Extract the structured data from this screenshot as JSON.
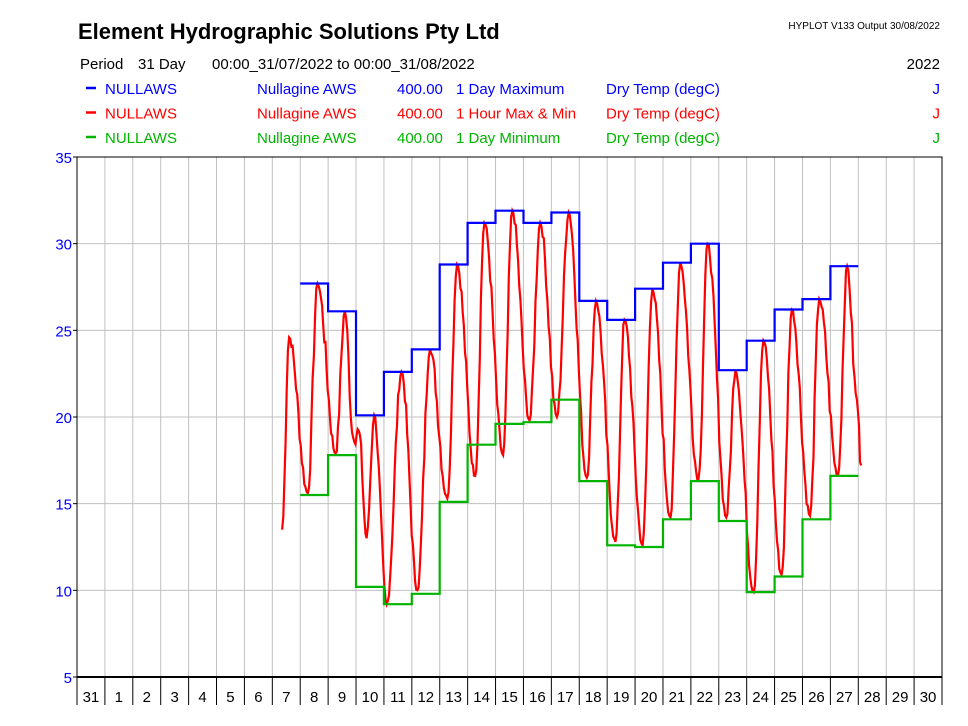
{
  "header": {
    "title": "Element Hydrographic Solutions Pty Ltd",
    "version": "HYPLOT V133  Output 30/08/2022",
    "period_label": "Period",
    "period_value": "31 Day",
    "period_range": "00:00_31/07/2022 to 00:00_31/08/2022",
    "year": "2022"
  },
  "legend": [
    {
      "site": "NULLAWS",
      "name": "Nullagine AWS",
      "var": "400.00",
      "desc": "1 Day Maximum",
      "param": "Dry Temp (degC)",
      "flag": "J",
      "color": "#0000ff"
    },
    {
      "site": "NULLAWS",
      "name": "Nullagine AWS",
      "var": "400.00",
      "desc": "1 Hour Max & Min",
      "param": "Dry Temp (degC)",
      "flag": "J",
      "color": "#ff0000"
    },
    {
      "site": "NULLAWS",
      "name": "Nullagine AWS",
      "var": "400.00",
      "desc": "1 Day Minimum",
      "param": "Dry Temp (degC)",
      "flag": "J",
      "color": "#00b400"
    }
  ],
  "chart_data": {
    "type": "line",
    "title": "Element Hydrographic Solutions Pty Ltd",
    "xlabel": "",
    "ylabel": "Dry Temp (degC)",
    "ylim": [
      5,
      35
    ],
    "yticks": [
      5,
      10,
      15,
      20,
      25,
      30,
      35
    ],
    "xlim_days": [
      0,
      31
    ],
    "x_tick_labels": [
      "31",
      "1",
      "2",
      "3",
      "4",
      "5",
      "6",
      "7",
      "8",
      "9",
      "10",
      "11",
      "12",
      "13",
      "14",
      "15",
      "16",
      "17",
      "18",
      "19",
      "20",
      "21",
      "22",
      "23",
      "24",
      "25",
      "26",
      "27",
      "28",
      "29",
      "30"
    ],
    "grid": true,
    "series": [
      {
        "name": "1 Day Maximum",
        "color": "#0000ff",
        "kind": "daily-step",
        "days": [
          8,
          9,
          10,
          11,
          12,
          13,
          14,
          15,
          16,
          17,
          18,
          19,
          20,
          21,
          22,
          23,
          24,
          25,
          26,
          27
        ],
        "values": [
          27.7,
          26.1,
          20.1,
          22.6,
          23.9,
          28.8,
          31.2,
          31.9,
          31.2,
          31.8,
          26.7,
          25.6,
          27.4,
          28.9,
          30.0,
          22.7,
          24.4,
          26.2,
          26.8,
          28.7
        ]
      },
      {
        "name": "1 Hour Max & Min",
        "color": "#ff0000",
        "kind": "hourly",
        "points": [
          [
            7.35,
            13.5
          ],
          [
            7.6,
            24.6
          ],
          [
            8.27,
            15.6
          ],
          [
            8.62,
            27.7
          ],
          [
            9.27,
            17.9
          ],
          [
            9.6,
            26.1
          ],
          [
            9.9,
            18.8
          ],
          [
            10.1,
            19.2
          ],
          [
            10.38,
            13.0
          ],
          [
            10.65,
            20.1
          ],
          [
            11.1,
            9.2
          ],
          [
            11.63,
            22.6
          ],
          [
            12.2,
            10.0
          ],
          [
            12.65,
            23.9
          ],
          [
            13.27,
            15.3
          ],
          [
            13.62,
            28.8
          ],
          [
            14.27,
            16.6
          ],
          [
            14.6,
            31.2
          ],
          [
            15.27,
            17.8
          ],
          [
            15.6,
            31.9
          ],
          [
            16.22,
            19.8
          ],
          [
            16.6,
            31.2
          ],
          [
            17.2,
            20.0
          ],
          [
            17.62,
            31.8
          ],
          [
            18.27,
            16.5
          ],
          [
            18.6,
            26.7
          ],
          [
            19.3,
            12.8
          ],
          [
            19.62,
            25.6
          ],
          [
            20.27,
            12.6
          ],
          [
            20.62,
            27.4
          ],
          [
            21.27,
            14.2
          ],
          [
            21.62,
            28.9
          ],
          [
            22.27,
            16.4
          ],
          [
            22.6,
            30.0
          ],
          [
            23.27,
            14.2
          ],
          [
            23.6,
            22.7
          ],
          [
            24.25,
            9.9
          ],
          [
            24.6,
            24.4
          ],
          [
            25.25,
            10.9
          ],
          [
            25.62,
            26.2
          ],
          [
            26.27,
            14.3
          ],
          [
            26.6,
            26.8
          ],
          [
            27.27,
            16.6
          ],
          [
            27.6,
            28.7
          ],
          [
            27.95,
            21.0
          ],
          [
            28.1,
            17.2
          ]
        ]
      },
      {
        "name": "1 Day Minimum",
        "color": "#00b400",
        "kind": "daily-step",
        "days": [
          8,
          9,
          10,
          11,
          12,
          13,
          14,
          15,
          16,
          17,
          18,
          19,
          20,
          21,
          22,
          23,
          24,
          25,
          26,
          27
        ],
        "values": [
          15.5,
          17.8,
          10.2,
          9.2,
          9.8,
          15.1,
          18.4,
          19.6,
          19.7,
          21.0,
          16.3,
          12.6,
          12.5,
          14.1,
          16.3,
          14.0,
          9.9,
          10.8,
          14.1,
          16.6
        ]
      }
    ]
  }
}
